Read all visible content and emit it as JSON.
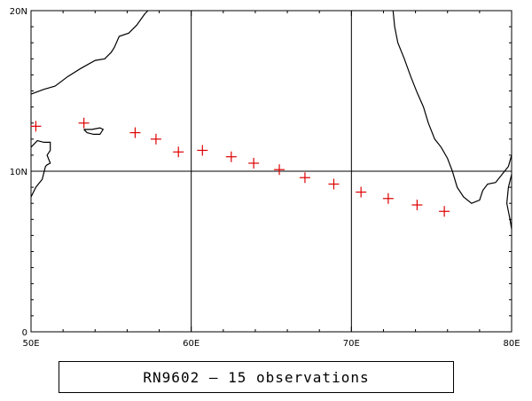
{
  "map": {
    "lon_range": [
      50,
      80
    ],
    "lat_range": [
      0,
      20
    ],
    "lon_ticks": [
      {
        "value": 50,
        "label": "50E"
      },
      {
        "value": 60,
        "label": "60E"
      },
      {
        "value": 70,
        "label": "70E"
      },
      {
        "value": 80,
        "label": "80E"
      }
    ],
    "lat_ticks": [
      {
        "value": 0,
        "label": "0"
      },
      {
        "value": 10,
        "label": "10N"
      },
      {
        "value": 20,
        "label": "20N"
      }
    ],
    "gridlines": {
      "lon": [
        60,
        70
      ],
      "lat": [
        10
      ]
    },
    "marker_color": "#dd0000",
    "marker_symbol": "plus",
    "observations": [
      {
        "lon": 50.3,
        "lat": 12.8
      },
      {
        "lon": 53.3,
        "lat": 13.0
      },
      {
        "lon": 56.5,
        "lat": 12.4
      },
      {
        "lon": 57.8,
        "lat": 12.0
      },
      {
        "lon": 59.2,
        "lat": 11.2
      },
      {
        "lon": 60.7,
        "lat": 11.3
      },
      {
        "lon": 62.5,
        "lat": 10.9
      },
      {
        "lon": 63.9,
        "lat": 10.5
      },
      {
        "lon": 65.5,
        "lat": 10.1
      },
      {
        "lon": 67.1,
        "lat": 9.6
      },
      {
        "lon": 68.9,
        "lat": 9.2
      },
      {
        "lon": 70.6,
        "lat": 8.7
      },
      {
        "lon": 72.3,
        "lat": 8.3
      },
      {
        "lon": 74.1,
        "lat": 7.9
      },
      {
        "lon": 75.8,
        "lat": 7.5
      }
    ],
    "coastlines": [
      {
        "name": "arabia-somalia-coastline",
        "points": [
          [
            50.0,
            14.8
          ],
          [
            50.8,
            15.1
          ],
          [
            51.5,
            15.3
          ],
          [
            52.3,
            15.9
          ],
          [
            53.1,
            16.4
          ],
          [
            54.0,
            16.9
          ],
          [
            54.6,
            17.0
          ],
          [
            55.0,
            17.4
          ],
          [
            55.2,
            17.7
          ],
          [
            55.5,
            18.4
          ],
          [
            56.1,
            18.6
          ],
          [
            56.6,
            19.1
          ],
          [
            57.1,
            19.8
          ],
          [
            57.3,
            20.0
          ]
        ]
      },
      {
        "name": "horn-of-africa-coastline",
        "points": [
          [
            50.0,
            11.5
          ],
          [
            50.4,
            11.9
          ],
          [
            50.8,
            11.8
          ],
          [
            51.2,
            11.8
          ],
          [
            51.2,
            11.3
          ],
          [
            51.0,
            11.0
          ],
          [
            51.2,
            10.5
          ],
          [
            51.0,
            10.4
          ],
          [
            50.9,
            10.3
          ],
          [
            50.7,
            9.5
          ],
          [
            50.3,
            9.0
          ],
          [
            50.0,
            8.4
          ]
        ]
      },
      {
        "name": "socotra-island",
        "points": [
          [
            53.3,
            12.6
          ],
          [
            53.8,
            12.6
          ],
          [
            54.3,
            12.7
          ],
          [
            54.5,
            12.6
          ],
          [
            54.3,
            12.3
          ],
          [
            53.9,
            12.3
          ],
          [
            53.5,
            12.4
          ],
          [
            53.3,
            12.6
          ]
        ]
      },
      {
        "name": "india-west-coastline",
        "points": [
          [
            72.6,
            20.0
          ],
          [
            72.7,
            19.0
          ],
          [
            72.9,
            18.0
          ],
          [
            73.3,
            17.0
          ],
          [
            73.7,
            15.9
          ],
          [
            74.1,
            14.9
          ],
          [
            74.5,
            14.0
          ],
          [
            74.8,
            13.0
          ],
          [
            75.2,
            12.0
          ],
          [
            75.6,
            11.5
          ],
          [
            76.0,
            10.8
          ],
          [
            76.3,
            10.0
          ],
          [
            76.6,
            9.0
          ],
          [
            77.0,
            8.4
          ],
          [
            77.5,
            8.0
          ],
          [
            78.0,
            8.2
          ],
          [
            78.2,
            8.8
          ],
          [
            78.5,
            9.2
          ],
          [
            79.0,
            9.3
          ],
          [
            79.4,
            9.8
          ],
          [
            79.8,
            10.3
          ],
          [
            80.0,
            11.0
          ]
        ]
      },
      {
        "name": "sri-lanka-coastline",
        "points": [
          [
            80.0,
            9.8
          ],
          [
            79.8,
            9.0
          ],
          [
            79.7,
            8.0
          ],
          [
            79.9,
            7.0
          ],
          [
            80.0,
            6.4
          ]
        ]
      }
    ]
  },
  "caption": "RN9602 – 15 observations"
}
